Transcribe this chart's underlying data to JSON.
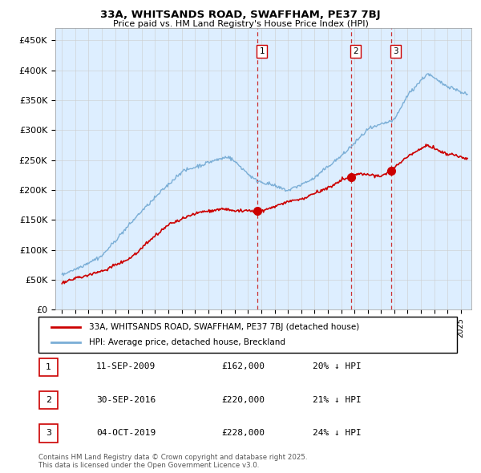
{
  "title": "33A, WHITSANDS ROAD, SWAFFHAM, PE37 7BJ",
  "subtitle": "Price paid vs. HM Land Registry's House Price Index (HPI)",
  "legend_label_red": "33A, WHITSANDS ROAD, SWAFFHAM, PE37 7BJ (detached house)",
  "legend_label_blue": "HPI: Average price, detached house, Breckland",
  "ylim": [
    0,
    470000
  ],
  "yticks": [
    0,
    50000,
    100000,
    150000,
    200000,
    250000,
    300000,
    350000,
    400000,
    450000
  ],
  "ytick_labels": [
    "£0",
    "£50K",
    "£100K",
    "£150K",
    "£200K",
    "£250K",
    "£300K",
    "£350K",
    "£400K",
    "£450K"
  ],
  "sales": [
    {
      "num": 1,
      "date": "11-SEP-2009",
      "price": 162000,
      "pct": "20%",
      "x_year": 2009.7
    },
    {
      "num": 2,
      "date": "30-SEP-2016",
      "price": 220000,
      "pct": "21%",
      "x_year": 2016.75
    },
    {
      "num": 3,
      "date": "04-OCT-2019",
      "price": 228000,
      "pct": "24%",
      "x_year": 2019.75
    }
  ],
  "footer_line1": "Contains HM Land Registry data © Crown copyright and database right 2025.",
  "footer_line2": "This data is licensed under the Open Government Licence v3.0.",
  "color_red": "#cc0000",
  "color_blue": "#7aaed6",
  "color_grid": "#cccccc",
  "background_chart": "#ddeeff",
  "xlim_start": 1994.5,
  "xlim_end": 2025.8
}
